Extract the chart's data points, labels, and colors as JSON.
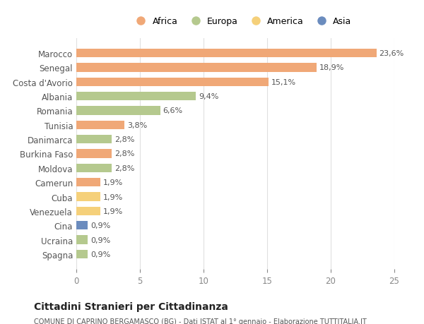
{
  "countries": [
    "Marocco",
    "Senegal",
    "Costa d'Avorio",
    "Albania",
    "Romania",
    "Tunisia",
    "Danimarca",
    "Burkina Faso",
    "Moldova",
    "Camerun",
    "Cuba",
    "Venezuela",
    "Cina",
    "Ucraina",
    "Spagna"
  ],
  "values": [
    23.6,
    18.9,
    15.1,
    9.4,
    6.6,
    3.8,
    2.8,
    2.8,
    2.8,
    1.9,
    1.9,
    1.9,
    0.9,
    0.9,
    0.9
  ],
  "labels": [
    "23,6%",
    "18,9%",
    "15,1%",
    "9,4%",
    "6,6%",
    "3,8%",
    "2,8%",
    "2,8%",
    "2,8%",
    "1,9%",
    "1,9%",
    "1,9%",
    "0,9%",
    "0,9%",
    "0,9%"
  ],
  "continents": [
    "Africa",
    "Africa",
    "Africa",
    "Europa",
    "Europa",
    "Africa",
    "Europa",
    "Africa",
    "Europa",
    "Africa",
    "America",
    "America",
    "Asia",
    "Europa",
    "Europa"
  ],
  "colors": {
    "Africa": "#F0A877",
    "Europa": "#B5C98E",
    "America": "#F5D07A",
    "Asia": "#6B8CBE"
  },
  "title": "Cittadini Stranieri per Cittadinanza",
  "subtitle": "COMUNE DI CAPRINO BERGAMASCO (BG) - Dati ISTAT al 1° gennaio - Elaborazione TUTTITALIA.IT",
  "xlim": [
    0,
    25
  ],
  "xticks": [
    0,
    5,
    10,
    15,
    20,
    25
  ],
  "background_color": "#ffffff",
  "grid_color": "#e0e0e0",
  "legend_order": [
    "Africa",
    "Europa",
    "America",
    "Asia"
  ]
}
